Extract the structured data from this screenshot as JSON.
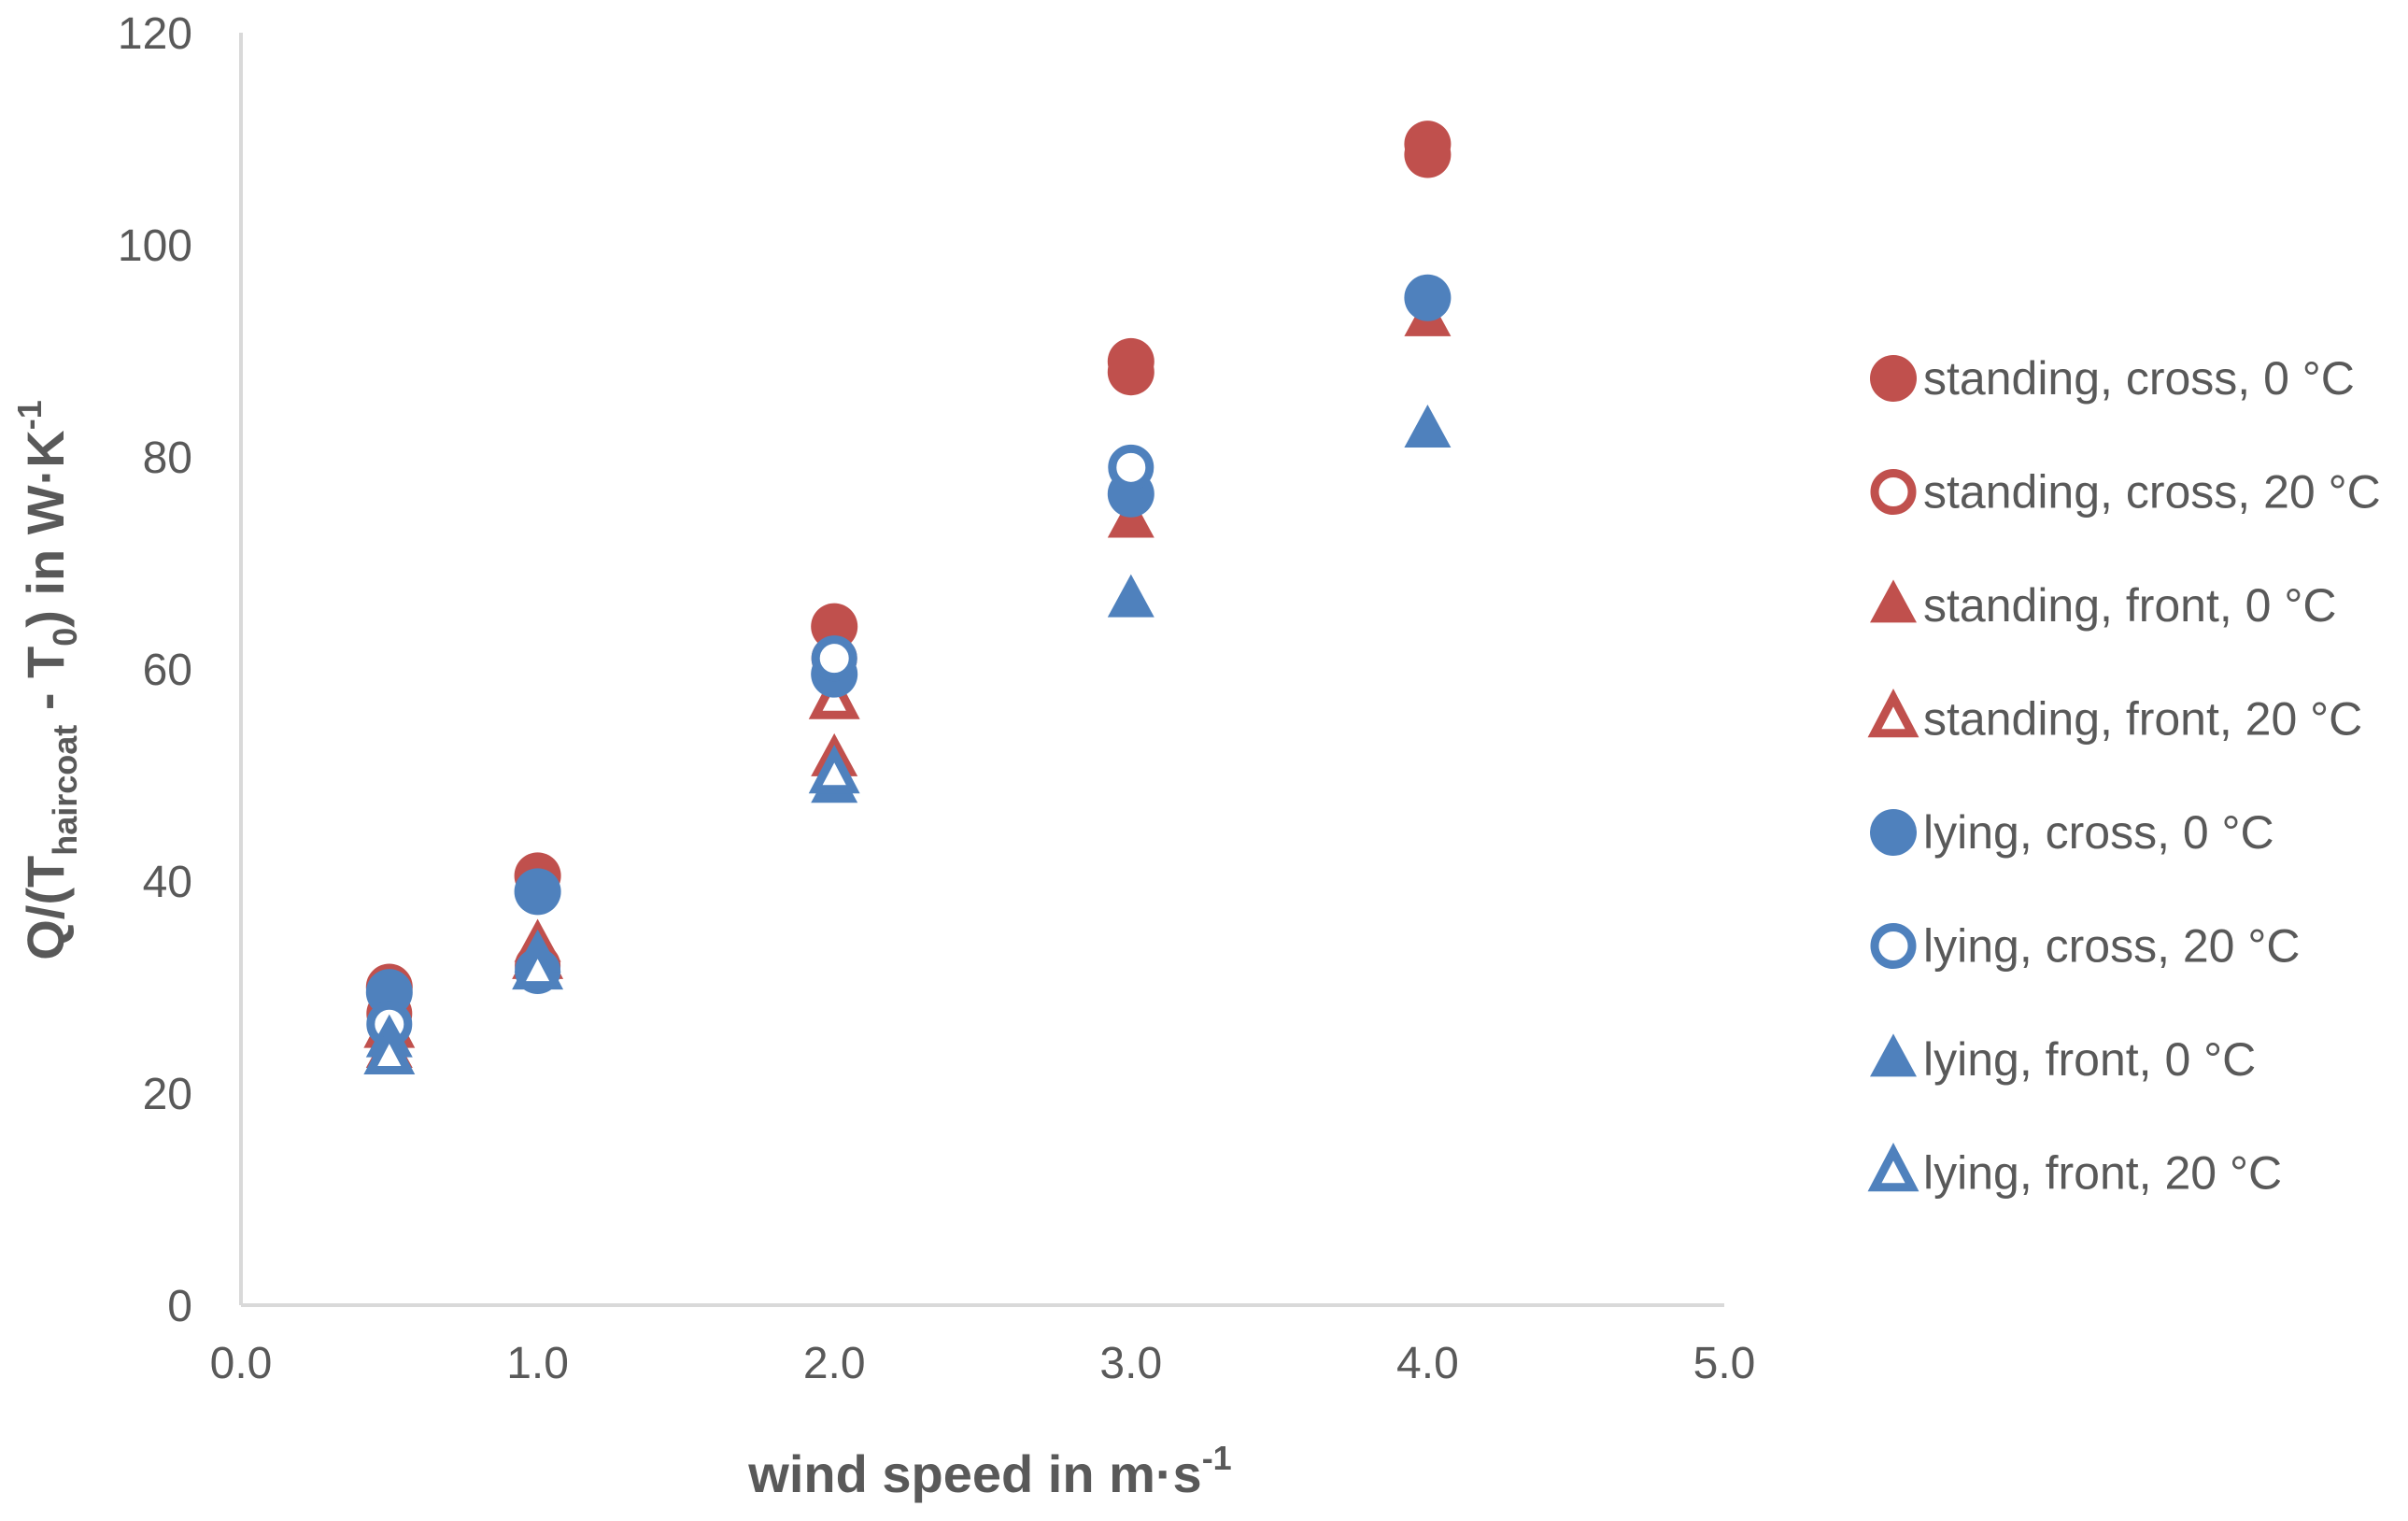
{
  "chart_data": {
    "type": "scatter",
    "xlim": [
      0,
      5
    ],
    "ylim": [
      0,
      120
    ],
    "x_ticks": [
      "0.0",
      "1.0",
      "2.0",
      "3.0",
      "4.0",
      "5.0"
    ],
    "y_ticks": [
      "0",
      "20",
      "40",
      "60",
      "80",
      "100",
      "120"
    ],
    "xlabel": {
      "main": "wind speed in m·s",
      "sup": "-1"
    },
    "ylabel": {
      "part1": "Q/(T",
      "sub1": "haircoat",
      "part2": " - T",
      "sub2": "0",
      "part3": ") in W·K",
      "sup": "-1"
    },
    "grid": false,
    "legend_position": "right",
    "colors": {
      "red": "#c0504d",
      "blue": "#4f81bd",
      "axis": "#d9d9d9",
      "text": "#595959"
    },
    "series": [
      {
        "name": "standing, cross, 0 °C",
        "color": "#c0504d",
        "marker": "circle",
        "filled": true,
        "points": [
          [
            0.5,
            30
          ],
          [
            1.0,
            40.5
          ],
          [
            2.0,
            64
          ],
          [
            3.0,
            89
          ],
          [
            3.0,
            88
          ],
          [
            4.0,
            109.5
          ],
          [
            4.0,
            108.5
          ]
        ]
      },
      {
        "name": "standing, cross, 20 °C",
        "color": "#c0504d",
        "marker": "circle",
        "filled": false,
        "points": [
          [
            0.5,
            27.5
          ],
          [
            1.0,
            32
          ],
          [
            2.0,
            61
          ]
        ]
      },
      {
        "name": "standing, front, 0 °C",
        "color": "#c0504d",
        "marker": "triangle",
        "filled": true,
        "points": [
          [
            0.5,
            24
          ],
          [
            1.0,
            34
          ],
          [
            2.0,
            51.5
          ],
          [
            3.0,
            74
          ],
          [
            4.0,
            93
          ]
        ]
      },
      {
        "name": "standing, front, 20 °C",
        "color": "#c0504d",
        "marker": "triangle",
        "filled": false,
        "points": [
          [
            0.5,
            26
          ],
          [
            1.0,
            32.5
          ],
          [
            2.0,
            57
          ]
        ]
      },
      {
        "name": "lying, cross, 0 °C",
        "color": "#4f81bd",
        "marker": "circle",
        "filled": true,
        "points": [
          [
            0.5,
            29.5
          ],
          [
            1.0,
            39
          ],
          [
            2.0,
            59.5
          ],
          [
            3.0,
            76.5
          ],
          [
            4.0,
            95
          ]
        ]
      },
      {
        "name": "lying, cross, 20 °C",
        "color": "#4f81bd",
        "marker": "circle",
        "filled": false,
        "points": [
          [
            0.5,
            26.5
          ],
          [
            1.0,
            31.5
          ],
          [
            2.0,
            61
          ],
          [
            3.0,
            79
          ]
        ]
      },
      {
        "name": "lying, front, 0 °C",
        "color": "#4f81bd",
        "marker": "triangle",
        "filled": true,
        "points": [
          [
            0.5,
            25
          ],
          [
            1.0,
            33
          ],
          [
            2.0,
            49
          ],
          [
            3.0,
            66.5
          ],
          [
            4.0,
            82.5
          ]
        ]
      },
      {
        "name": "lying, front, 20 °C",
        "color": "#4f81bd",
        "marker": "triangle",
        "filled": false,
        "points": [
          [
            0.5,
            23.5
          ],
          [
            1.0,
            31.5
          ],
          [
            2.0,
            50
          ]
        ]
      }
    ]
  }
}
